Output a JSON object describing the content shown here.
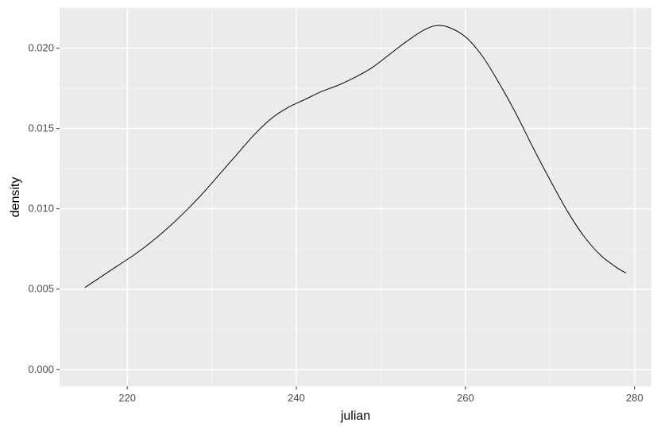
{
  "chart_data": {
    "type": "line",
    "title": "",
    "xlabel": "julian",
    "ylabel": "density",
    "xlim": [
      212,
      282
    ],
    "ylim": [
      -0.00105,
      0.0225
    ],
    "grid": true,
    "x_ticks": [
      220,
      240,
      260,
      280
    ],
    "x_tick_labels": [
      "220",
      "240",
      "260",
      "280"
    ],
    "y_ticks": [
      0.0,
      0.005,
      0.01,
      0.015,
      0.02
    ],
    "y_tick_labels": [
      "0.000",
      "0.005",
      "0.010",
      "0.015",
      "0.020"
    ],
    "series": [
      {
        "x": [
          215,
          217,
          219,
          221,
          223,
          225,
          227,
          229,
          231,
          233,
          235,
          237,
          239,
          241,
          243,
          245,
          247,
          249,
          251,
          253,
          255,
          256.5,
          258,
          260,
          262,
          264,
          266,
          268,
          270,
          272,
          274,
          276,
          278,
          279
        ],
        "y": [
          0.0051,
          0.0058,
          0.0065,
          0.0072,
          0.008,
          0.0089,
          0.0099,
          0.011,
          0.0122,
          0.0134,
          0.0146,
          0.0156,
          0.0163,
          0.0168,
          0.0173,
          0.0177,
          0.0182,
          0.0188,
          0.0196,
          0.0204,
          0.0211,
          0.0214,
          0.0213,
          0.0207,
          0.0195,
          0.0178,
          0.0159,
          0.0138,
          0.0118,
          0.0099,
          0.0083,
          0.0071,
          0.0063,
          0.006
        ]
      }
    ],
    "colors": {
      "panel_background": "#ebebeb",
      "major_grid": "#ffffff",
      "minor_grid": "#f5f5f5",
      "line": "#000000",
      "tick_label": "#4d4d4d",
      "axis_title": "#000000"
    }
  }
}
